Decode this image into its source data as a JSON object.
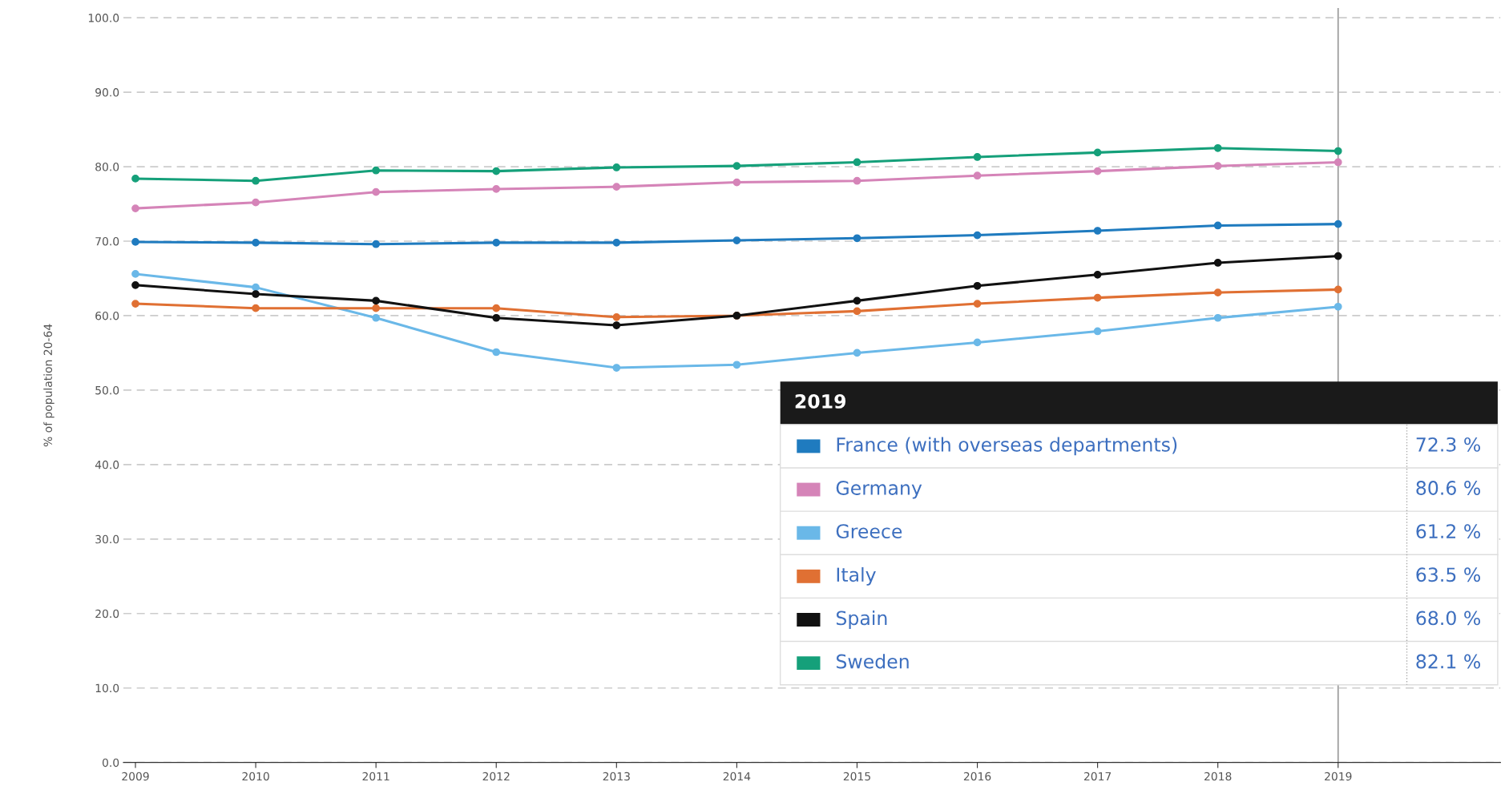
{
  "chart_data": {
    "type": "line",
    "ylabel": "% of population 20-64",
    "x": [
      2009,
      2010,
      2011,
      2012,
      2013,
      2014,
      2015,
      2016,
      2017,
      2018,
      2019
    ],
    "xlim": [
      2008.9,
      2020.35
    ],
    "xticks": [
      2009,
      2010,
      2011,
      2012,
      2013,
      2014,
      2015,
      2016,
      2017,
      2018,
      2019
    ],
    "ylim": [
      0,
      101.3
    ],
    "yticks": [
      {
        "value": 0,
        "label": "0.0"
      },
      {
        "value": 10,
        "label": "10.0"
      },
      {
        "value": 20,
        "label": "20.0"
      },
      {
        "value": 30,
        "label": "30.0"
      },
      {
        "value": 40,
        "label": "40.0"
      },
      {
        "value": 50,
        "label": "50.0"
      },
      {
        "value": 60,
        "label": "60.0"
      },
      {
        "value": 70,
        "label": "70.0"
      },
      {
        "value": 80,
        "label": "80.0"
      },
      {
        "value": 90,
        "label": "90.0"
      },
      {
        "value": 100,
        "label": "100.0"
      }
    ],
    "grid": "y",
    "marker": "circle",
    "line_style": "solid",
    "legend": "bottom right",
    "ref_lines": [
      {
        "axis": "x",
        "value": 2019,
        "color": "#999999"
      }
    ],
    "annotations": [
      "2019",
      "72.3 %",
      "80.6 %",
      "61.2 %",
      "63.5 %",
      "68.0 %",
      "82.1 %"
    ],
    "series": [
      {
        "name": "France (with overseas departments)",
        "color": "#1f7bbf",
        "values": [
          69.9,
          69.8,
          69.6,
          69.8,
          69.8,
          70.1,
          70.4,
          70.8,
          71.4,
          72.1,
          72.3
        ]
      },
      {
        "name": "Germany",
        "color": "#d584b8",
        "values": [
          74.4,
          75.2,
          76.6,
          77.0,
          77.3,
          77.9,
          78.1,
          78.8,
          79.4,
          80.1,
          80.6
        ]
      },
      {
        "name": "Greece",
        "color": "#6ab8e8",
        "values": [
          65.6,
          63.8,
          59.7,
          55.1,
          53.0,
          53.4,
          55.0,
          56.4,
          57.9,
          59.7,
          61.2
        ]
      },
      {
        "name": "Italy",
        "color": "#e07033",
        "values": [
          61.6,
          61.0,
          61.0,
          61.0,
          59.8,
          60.0,
          60.6,
          61.6,
          62.4,
          63.1,
          63.5
        ]
      },
      {
        "name": "Spain",
        "color": "#111111",
        "values": [
          64.1,
          62.9,
          62.0,
          59.7,
          58.7,
          60.0,
          62.0,
          64.0,
          65.5,
          67.1,
          68.0
        ]
      },
      {
        "name": "Sweden",
        "color": "#15a07a",
        "values": [
          78.4,
          78.1,
          79.5,
          79.4,
          79.9,
          80.1,
          80.6,
          81.3,
          81.9,
          82.5,
          82.1
        ]
      }
    ]
  }
}
